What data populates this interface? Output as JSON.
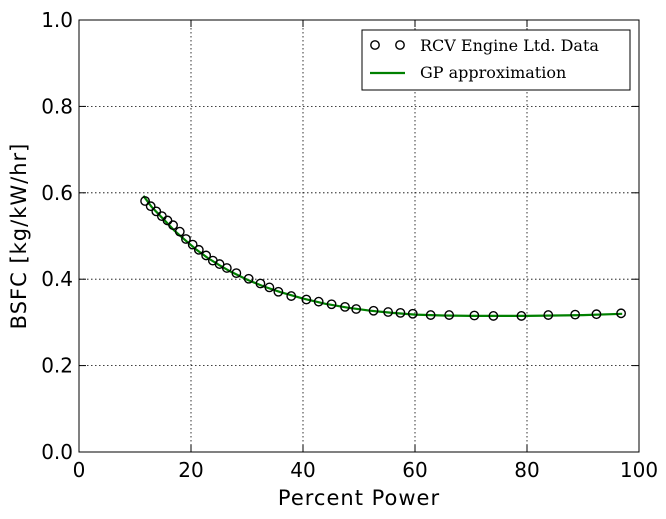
{
  "chart_data": {
    "type": "line",
    "xlabel": "Percent Power",
    "ylabel": "BSFC [kg/kW/hr]",
    "xlim": [
      0,
      100
    ],
    "ylim": [
      0.0,
      1.0
    ],
    "xticks": [
      0,
      20,
      40,
      60,
      80,
      100
    ],
    "xtick_labels": [
      "0",
      "20",
      "40",
      "60",
      "80",
      "100"
    ],
    "yticks": [
      0.0,
      0.2,
      0.4,
      0.6,
      0.8,
      1.0
    ],
    "ytick_labels": [
      "0.0",
      "0.2",
      "0.4",
      "0.6",
      "0.8",
      "1.0"
    ],
    "grid": true,
    "legend_position": "top-right",
    "series": [
      {
        "name": "RCV Engine Ltd. Data",
        "style": "markers",
        "marker": "open-circle",
        "color": "#000000",
        "x": [
          11.8,
          12.8,
          13.8,
          14.8,
          15.8,
          16.8,
          18.0,
          19.1,
          20.3,
          21.4,
          22.7,
          23.9,
          25.1,
          26.4,
          28.1,
          30.3,
          32.4,
          34.0,
          35.6,
          37.9,
          40.6,
          42.8,
          45.1,
          47.5,
          49.5,
          52.6,
          55.2,
          57.4,
          59.6,
          62.8,
          66.1,
          70.6,
          74.0,
          79.0,
          83.8,
          88.6,
          92.4,
          96.8
        ],
        "y": [
          0.581,
          0.569,
          0.557,
          0.546,
          0.536,
          0.525,
          0.51,
          0.493,
          0.48,
          0.468,
          0.455,
          0.443,
          0.435,
          0.426,
          0.414,
          0.401,
          0.39,
          0.381,
          0.371,
          0.361,
          0.353,
          0.348,
          0.342,
          0.336,
          0.331,
          0.327,
          0.324,
          0.322,
          0.32,
          0.317,
          0.317,
          0.316,
          0.315,
          0.315,
          0.317,
          0.318,
          0.319,
          0.321
        ]
      },
      {
        "name": "GP approximation",
        "style": "line",
        "color": "#008000",
        "x": [
          11.5,
          13,
          15,
          17,
          19,
          21,
          23,
          25,
          27,
          30,
          33,
          36,
          40,
          44,
          48,
          52,
          56,
          60,
          65,
          70,
          75,
          80,
          85,
          90,
          97
        ],
        "y": [
          0.593,
          0.567,
          0.54,
          0.513,
          0.49,
          0.468,
          0.449,
          0.433,
          0.418,
          0.399,
          0.383,
          0.37,
          0.355,
          0.343,
          0.334,
          0.327,
          0.322,
          0.318,
          0.316,
          0.315,
          0.315,
          0.315,
          0.316,
          0.317,
          0.32
        ]
      }
    ]
  }
}
